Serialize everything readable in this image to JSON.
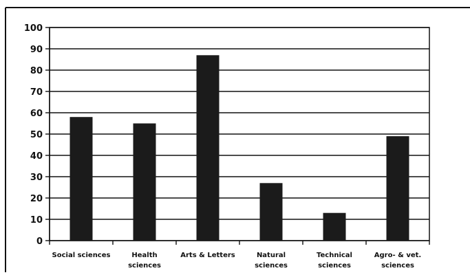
{
  "chart_data": {
    "type": "bar",
    "title": "",
    "xlabel": "",
    "ylabel": "",
    "ylim": [
      0,
      100
    ],
    "yticks": [
      "0",
      "10",
      "20",
      "30",
      "40",
      "50",
      "60",
      "70",
      "80",
      "90",
      "100"
    ],
    "grid": true,
    "legend": "none",
    "categories": [
      [
        "Social sciences"
      ],
      [
        "Health",
        "sciences"
      ],
      [
        "Arts & Letters"
      ],
      [
        "Natural",
        "sciences"
      ],
      [
        "Technical",
        "sciences"
      ],
      [
        "Agro- & vet.",
        "sciences"
      ]
    ],
    "values": [
      58,
      55,
      87,
      27,
      13,
      49
    ],
    "bar_color": "#1b1b1b"
  }
}
